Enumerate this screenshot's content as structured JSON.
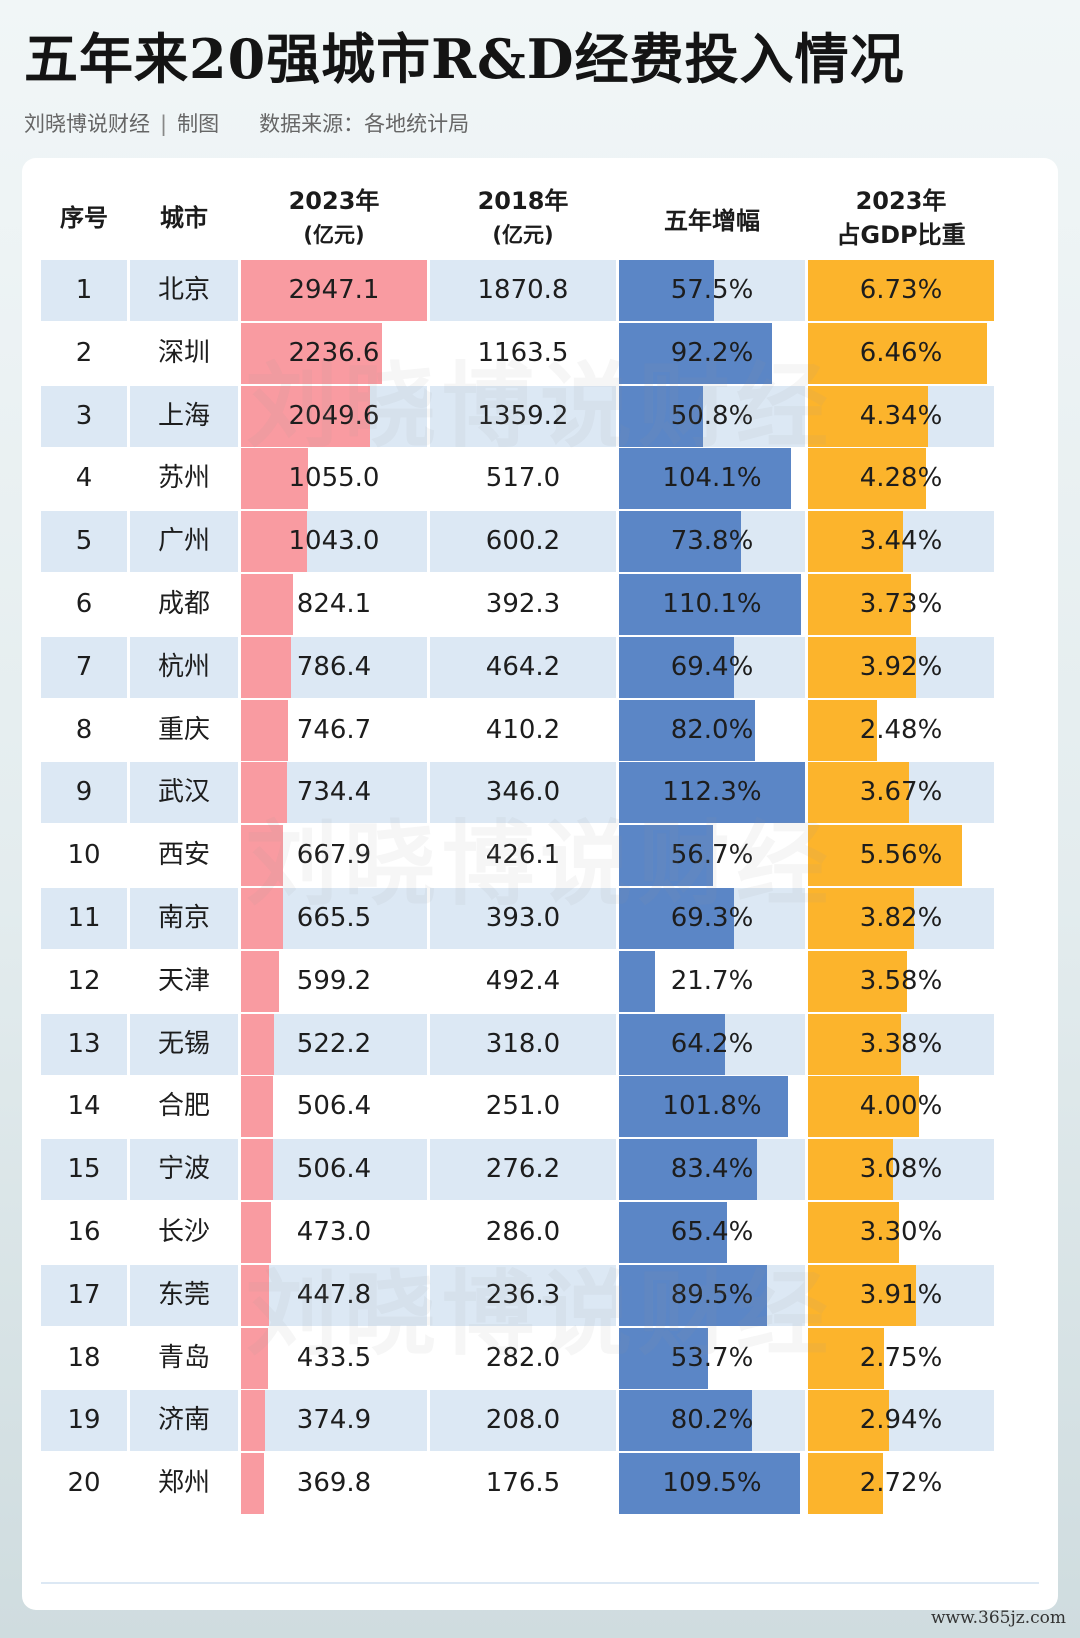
{
  "title": "五年来20强城市R&D经费投入情况",
  "credit": "刘晓博说财经",
  "credit_sep": "|",
  "credit_suffix": "制图",
  "source": "数据来源：各地统计局",
  "watermark": "刘晓博说财经",
  "site": "www.365jz.com",
  "colors": {
    "rd2023": "#f99ba1",
    "growth": "#5b86c6",
    "share": "#fcb42c",
    "band": "#dce8f4"
  },
  "headers": {
    "rank": "序号",
    "city": "城市",
    "rd2023": "2023年",
    "rd2023_unit": "(亿元)",
    "rd2018": "2018年",
    "rd2018_unit": "(亿元)",
    "growth": "五年增幅",
    "share": "2023年",
    "share_sub": "占GDP比重"
  },
  "chart_data": {
    "type": "table",
    "columns": [
      "序号",
      "城市",
      "2023年(亿元)",
      "2018年(亿元)",
      "五年增幅",
      "2023年占GDP比重"
    ],
    "rows": [
      {
        "rank": "1",
        "city": "北京",
        "rd2023": "2947.1",
        "rd2018": "1870.8",
        "growth": "57.5%",
        "share": "6.73%"
      },
      {
        "rank": "2",
        "city": "深圳",
        "rd2023": "2236.6",
        "rd2018": "1163.5",
        "growth": "92.2%",
        "share": "6.46%"
      },
      {
        "rank": "3",
        "city": "上海",
        "rd2023": "2049.6",
        "rd2018": "1359.2",
        "growth": "50.8%",
        "share": "4.34%"
      },
      {
        "rank": "4",
        "city": "苏州",
        "rd2023": "1055.0",
        "rd2018": "517.0",
        "growth": "104.1%",
        "share": "4.28%"
      },
      {
        "rank": "5",
        "city": "广州",
        "rd2023": "1043.0",
        "rd2018": "600.2",
        "growth": "73.8%",
        "share": "3.44%"
      },
      {
        "rank": "6",
        "city": "成都",
        "rd2023": "824.1",
        "rd2018": "392.3",
        "growth": "110.1%",
        "share": "3.73%"
      },
      {
        "rank": "7",
        "city": "杭州",
        "rd2023": "786.4",
        "rd2018": "464.2",
        "growth": "69.4%",
        "share": "3.92%"
      },
      {
        "rank": "8",
        "city": "重庆",
        "rd2023": "746.7",
        "rd2018": "410.2",
        "growth": "82.0%",
        "share": "2.48%"
      },
      {
        "rank": "9",
        "city": "武汉",
        "rd2023": "734.4",
        "rd2018": "346.0",
        "growth": "112.3%",
        "share": "3.67%"
      },
      {
        "rank": "10",
        "city": "西安",
        "rd2023": "667.9",
        "rd2018": "426.1",
        "growth": "56.7%",
        "share": "5.56%"
      },
      {
        "rank": "11",
        "city": "南京",
        "rd2023": "665.5",
        "rd2018": "393.0",
        "growth": "69.3%",
        "share": "3.82%"
      },
      {
        "rank": "12",
        "city": "天津",
        "rd2023": "599.2",
        "rd2018": "492.4",
        "growth": "21.7%",
        "share": "3.58%"
      },
      {
        "rank": "13",
        "city": "无锡",
        "rd2023": "522.2",
        "rd2018": "318.0",
        "growth": "64.2%",
        "share": "3.38%"
      },
      {
        "rank": "14",
        "city": "合肥",
        "rd2023": "506.4",
        "rd2018": "251.0",
        "growth": "101.8%",
        "share": "4.00%"
      },
      {
        "rank": "15",
        "city": "宁波",
        "rd2023": "506.4",
        "rd2018": "276.2",
        "growth": "83.4%",
        "share": "3.08%"
      },
      {
        "rank": "16",
        "city": "长沙",
        "rd2023": "473.0",
        "rd2018": "286.0",
        "growth": "65.4%",
        "share": "3.30%"
      },
      {
        "rank": "17",
        "city": "东莞",
        "rd2023": "447.8",
        "rd2018": "236.3",
        "growth": "89.5%",
        "share": "3.91%"
      },
      {
        "rank": "18",
        "city": "青岛",
        "rd2023": "433.5",
        "rd2018": "282.0",
        "growth": "53.7%",
        "share": "2.75%"
      },
      {
        "rank": "19",
        "city": "济南",
        "rd2023": "374.9",
        "rd2018": "208.0",
        "growth": "80.2%",
        "share": "2.94%"
      },
      {
        "rank": "20",
        "city": "郑州",
        "rd2023": "369.8",
        "rd2018": "176.5",
        "growth": "109.5%",
        "share": "2.72%"
      }
    ]
  }
}
